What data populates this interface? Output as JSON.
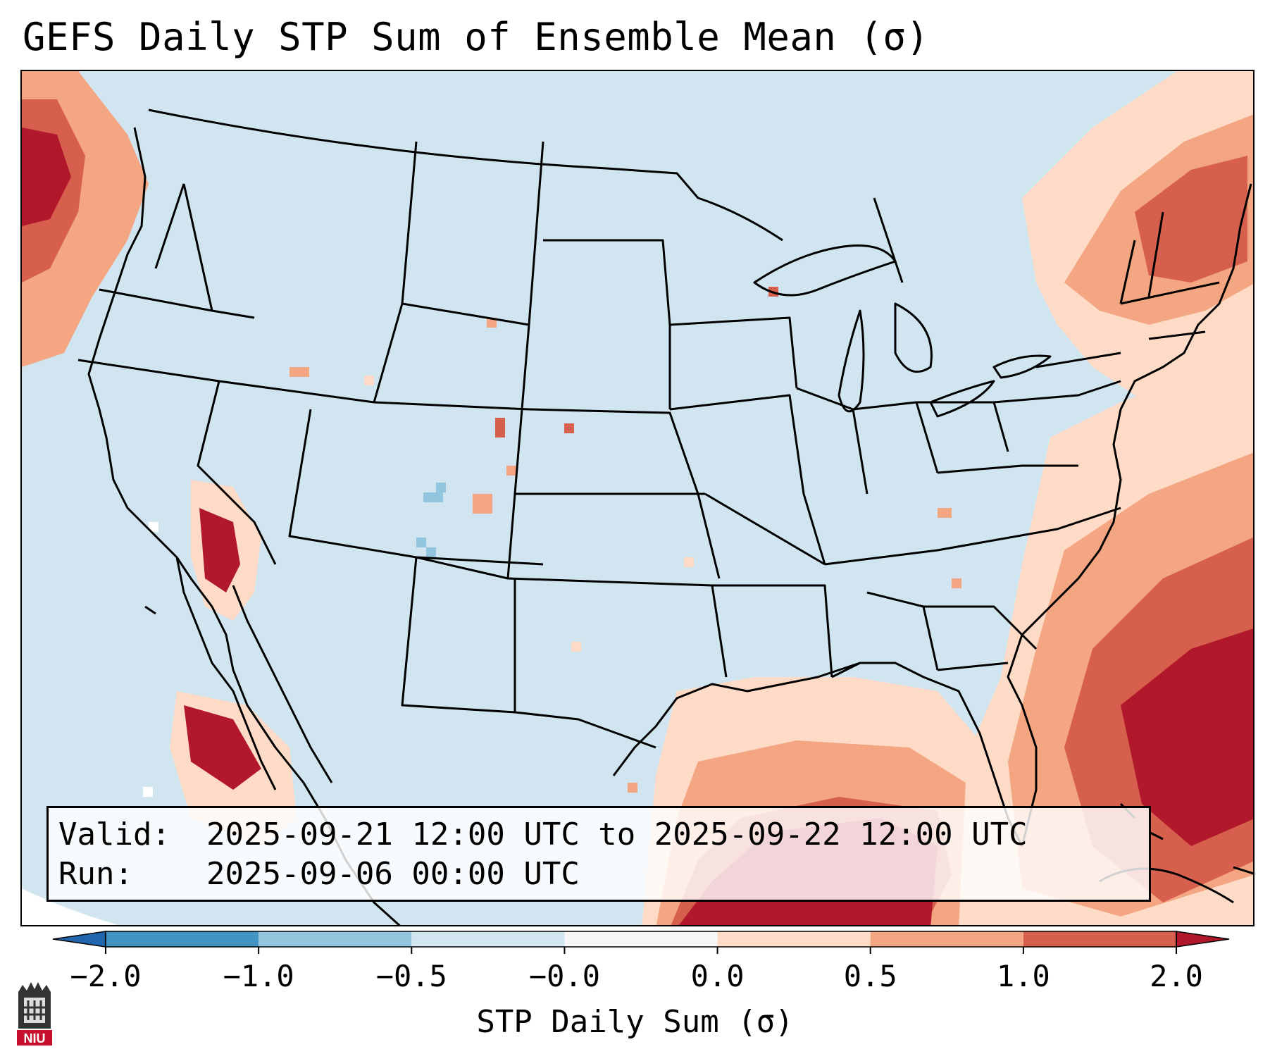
{
  "title": "GEFS Daily STP Sum of Ensemble Mean (σ)",
  "info": {
    "valid_label": "Valid:",
    "valid_value": "2025-09-21 12:00 UTC to 2025-09-22 12:00 UTC",
    "run_label": "Run:",
    "run_value": "2025-09-06 00:00 UTC"
  },
  "colorbar": {
    "label": "STP Daily Sum (σ)",
    "ticks": [
      "−2.0",
      "−1.0",
      "−0.5",
      "−0.0",
      "0.0",
      "0.5",
      "1.0",
      "2.0"
    ],
    "bin_colors": [
      "#4393c3",
      "#92c5de",
      "#d1e5f0",
      "#f7f7f7",
      "#fddbc7",
      "#f4a582",
      "#d6604d"
    ],
    "under_color": "#2166ac",
    "over_color": "#b2182b"
  },
  "map": {
    "background_color": "#d1e5f0",
    "field_colors": {
      "near_zero_neg": "#d1e5f0",
      "near_zero": "#f7f7f7",
      "low_pos": "#fddbc7",
      "mid_pos": "#f4a582",
      "high_pos": "#d6604d",
      "extreme_pos": "#b2182b",
      "low_neg": "#92c5de"
    }
  },
  "logo": {
    "text": "NIU"
  }
}
